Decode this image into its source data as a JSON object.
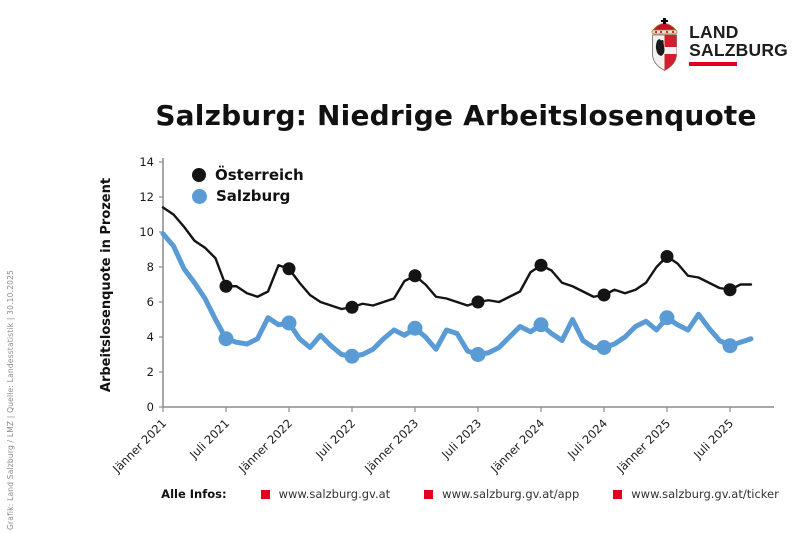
{
  "side_caption": "Grafik: Land Salzburg / LMZ  |  Quelle: Landesstatistik  |  30.10.2025",
  "logo": {
    "line1": "LAND",
    "line2": "SALZBURG"
  },
  "title": "Salzburg: Niedrige Arbeitslosenquote",
  "legend": [
    "Österreich",
    "Salzburg"
  ],
  "footer": {
    "label": "Alle Infos:",
    "links": [
      "www.salzburg.gv.at",
      "www.salzburg.gv.at/app",
      "www.salzburg.gv.at/ticker"
    ]
  },
  "colors": {
    "austria": "#141414",
    "salzburg": "#5B9BD5",
    "red": "#E2001A",
    "axis": "#8c8c8c",
    "tick_text": "#1a1a1a"
  },
  "chart_data": {
    "type": "line",
    "title": "Salzburg: Niedrige Arbeitslosenquote",
    "ylabel": "Arbeitslosenquote in Prozent",
    "ylim": [
      0,
      14
    ],
    "ytick_step": 2,
    "grid": false,
    "legend_position": "top-left-inside",
    "x_frequency": "monthly",
    "x_range": [
      "Jänner 2021",
      "September 2025"
    ],
    "xtick_labels": [
      "Jänner 2021",
      "Juli 2021",
      "Jänner 2022",
      "Juli 2022",
      "Jänner 2023",
      "Juli 2023",
      "Jänner 2024",
      "Juli 2024",
      "Jänner 2025",
      "Juli 2025"
    ],
    "xtick_indices": [
      0,
      6,
      12,
      18,
      24,
      30,
      36,
      42,
      48,
      54
    ],
    "marker_indices": [
      6,
      12,
      18,
      24,
      30,
      36,
      42,
      48,
      54
    ],
    "series": [
      {
        "name": "Österreich",
        "values": [
          11.4,
          11.0,
          10.3,
          9.5,
          9.1,
          8.5,
          6.9,
          6.9,
          6.5,
          6.3,
          6.6,
          8.1,
          7.9,
          7.1,
          6.4,
          6.0,
          5.8,
          5.6,
          5.7,
          5.9,
          5.8,
          6.0,
          6.2,
          7.2,
          7.5,
          7.0,
          6.3,
          6.2,
          6.0,
          5.8,
          6.0,
          6.1,
          6.0,
          6.3,
          6.6,
          7.7,
          8.1,
          7.8,
          7.1,
          6.9,
          6.6,
          6.3,
          6.4,
          6.7,
          6.5,
          6.7,
          7.1,
          8.0,
          8.6,
          8.2,
          7.5,
          7.4,
          7.1,
          6.8,
          6.7,
          7.0,
          7.0
        ]
      },
      {
        "name": "Salzburg",
        "values": [
          9.9,
          9.2,
          7.9,
          7.1,
          6.2,
          5.0,
          3.9,
          3.7,
          3.6,
          3.9,
          5.1,
          4.7,
          4.8,
          3.9,
          3.4,
          4.1,
          3.5,
          3.0,
          2.9,
          3.0,
          3.3,
          3.9,
          4.4,
          4.1,
          4.5,
          4.0,
          3.3,
          4.4,
          4.2,
          3.2,
          3.0,
          3.1,
          3.4,
          4.0,
          4.6,
          4.3,
          4.7,
          4.2,
          3.8,
          5.0,
          3.8,
          3.4,
          3.4,
          3.6,
          4.0,
          4.6,
          4.9,
          4.4,
          5.1,
          4.7,
          4.4,
          5.3,
          4.5,
          3.8,
          3.5,
          3.7,
          3.9
        ]
      }
    ]
  }
}
